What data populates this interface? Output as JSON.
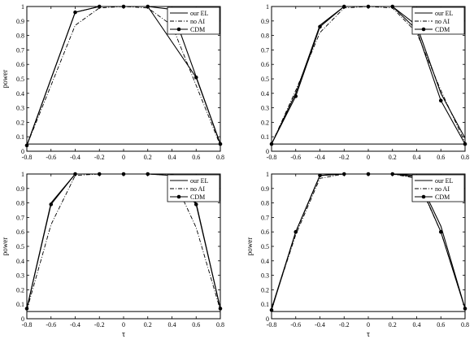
{
  "chart_data": [
    {
      "type": "line",
      "xlabel": "",
      "ylabel": "power",
      "xlim": [
        -0.8,
        0.8
      ],
      "ylim": [
        0,
        1
      ],
      "xticks": [
        "-0.8",
        "-0.6",
        "-0.4",
        "-0.2",
        "0",
        "0.2",
        "0.4",
        "0.6",
        "0.8"
      ],
      "yticks": [
        "0",
        "0.1",
        "0.2",
        "0.3",
        "0.4",
        "0.5",
        "0.6",
        "0.7",
        "0.8",
        "0.9",
        "1"
      ],
      "legend_position": "top-right",
      "reference_line": 0.05,
      "series": [
        {
          "name": "our EL",
          "style": "solid",
          "markers": false,
          "x": [
            -0.8,
            -0.4,
            -0.2,
            0,
            0.2,
            0.4,
            0.8
          ],
          "y": [
            0.04,
            0.96,
            1.0,
            1.0,
            1.0,
            0.98,
            0.05
          ]
        },
        {
          "name": "no AI",
          "style": "dashdot",
          "markers": false,
          "x": [
            -0.8,
            -0.4,
            -0.2,
            0,
            0.2,
            0.4,
            0.8
          ],
          "y": [
            0.04,
            0.87,
            0.99,
            1.0,
            0.99,
            0.87,
            0.04
          ]
        },
        {
          "name": "CDM",
          "style": "solid",
          "markers": true,
          "x": [
            -0.8,
            -0.4,
            -0.2,
            0,
            0.2,
            0.6,
            0.8
          ],
          "y": [
            0.04,
            0.96,
            1.0,
            1.0,
            1.0,
            0.51,
            0.05
          ]
        }
      ]
    },
    {
      "type": "line",
      "xlabel": "",
      "ylabel": "",
      "xlim": [
        -0.8,
        0.8
      ],
      "ylim": [
        0,
        1
      ],
      "xticks": [
        "-0.8",
        "-0.6",
        "-0.4",
        "-0.2",
        "0",
        "0.2",
        "0.4",
        "0.6",
        "0.8"
      ],
      "yticks": [
        "0",
        "0.1",
        "0.2",
        "0.3",
        "0.4",
        "0.5",
        "0.6",
        "0.7",
        "0.8",
        "0.9",
        "1"
      ],
      "legend_position": "top-right",
      "reference_line": 0.05,
      "series": [
        {
          "name": "our EL",
          "style": "solid",
          "markers": false,
          "x": [
            -0.8,
            -0.6,
            -0.4,
            -0.2,
            0,
            0.2,
            0.4,
            0.6,
            0.8
          ],
          "y": [
            0.05,
            0.4,
            0.87,
            1.0,
            1.0,
            1.0,
            0.87,
            0.4,
            0.09
          ]
        },
        {
          "name": "no AI",
          "style": "dashdot",
          "markers": false,
          "x": [
            -0.8,
            -0.6,
            -0.4,
            -0.2,
            0,
            0.2,
            0.4,
            0.6,
            0.8
          ],
          "y": [
            0.05,
            0.42,
            0.82,
            0.99,
            1.0,
            0.99,
            0.82,
            0.42,
            0.06
          ]
        },
        {
          "name": "CDM",
          "style": "solid",
          "markers": true,
          "x": [
            -0.8,
            -0.6,
            -0.4,
            -0.2,
            0,
            0.2,
            0.4,
            0.6,
            0.8
          ],
          "y": [
            0.05,
            0.38,
            0.86,
            1.0,
            1.0,
            1.0,
            0.84,
            0.35,
            0.05
          ]
        }
      ]
    },
    {
      "type": "line",
      "xlabel": "τ",
      "ylabel": "power",
      "xlim": [
        -0.8,
        0.8
      ],
      "ylim": [
        0,
        1
      ],
      "xticks": [
        "-0.8",
        "-0.6",
        "-0.4",
        "-0.2",
        "0",
        "0.2",
        "0.4",
        "0.6",
        "0.8"
      ],
      "yticks": [
        "0",
        "0.1",
        "0.2",
        "0.3",
        "0.4",
        "0.5",
        "0.6",
        "0.7",
        "0.8",
        "0.9",
        "1"
      ],
      "legend_position": "top-right",
      "reference_line": 0.05,
      "series": [
        {
          "name": "our EL",
          "style": "solid",
          "markers": false,
          "x": [
            -0.8,
            -0.6,
            -0.4,
            -0.2,
            0,
            0.2,
            0.4,
            0.6,
            0.8
          ],
          "y": [
            0.07,
            0.8,
            1.0,
            1.0,
            1.0,
            1.0,
            1.0,
            0.8,
            0.07
          ]
        },
        {
          "name": "no AI",
          "style": "dashdot",
          "markers": false,
          "x": [
            -0.8,
            -0.6,
            -0.4,
            -0.2,
            0,
            0.2,
            0.4,
            0.6,
            0.8
          ],
          "y": [
            0.06,
            0.65,
            0.99,
            1.0,
            1.0,
            1.0,
            0.99,
            0.63,
            0.06
          ]
        },
        {
          "name": "CDM",
          "style": "solid",
          "markers": true,
          "x": [
            -0.8,
            -0.6,
            -0.4,
            -0.2,
            0,
            0.2,
            0.4,
            0.6,
            0.8
          ],
          "y": [
            0.07,
            0.79,
            1.0,
            1.0,
            1.0,
            1.0,
            0.99,
            0.79,
            0.07
          ]
        }
      ]
    },
    {
      "type": "line",
      "xlabel": "τ",
      "ylabel": "power",
      "xlim": [
        -0.8,
        0.8
      ],
      "ylim": [
        0,
        1
      ],
      "xticks": [
        "-0.8",
        "-0.6",
        "-0.4",
        "-0.2",
        "0",
        "0.2",
        "0.4",
        "0.6",
        "0.8"
      ],
      "yticks": [
        "0",
        "0.1",
        "0.2",
        "0.3",
        "0.4",
        "0.5",
        "0.6",
        "0.7",
        "0.8",
        "0.9",
        "1"
      ],
      "legend_position": "top-right",
      "reference_line": 0.05,
      "series": [
        {
          "name": "our EL",
          "style": "solid",
          "markers": false,
          "x": [
            -0.8,
            -0.6,
            -0.4,
            -0.2,
            0,
            0.2,
            0.4,
            0.6,
            0.8
          ],
          "y": [
            0.07,
            0.6,
            0.99,
            1.0,
            1.0,
            1.0,
            0.99,
            0.64,
            0.07
          ]
        },
        {
          "name": "no AI",
          "style": "dashdot",
          "markers": false,
          "x": [
            -0.8,
            -0.6,
            -0.4,
            -0.2,
            0,
            0.2,
            0.4,
            0.6,
            0.8
          ],
          "y": [
            0.07,
            0.58,
            0.97,
            1.0,
            1.0,
            1.0,
            0.97,
            0.6,
            0.07
          ]
        },
        {
          "name": "CDM",
          "style": "solid",
          "markers": true,
          "x": [
            -0.8,
            -0.6,
            -0.4,
            -0.2,
            0,
            0.2,
            0.4,
            0.6,
            0.8
          ],
          "y": [
            0.06,
            0.6,
            0.99,
            1.0,
            1.0,
            1.0,
            0.98,
            0.6,
            0.07
          ]
        }
      ]
    }
  ]
}
